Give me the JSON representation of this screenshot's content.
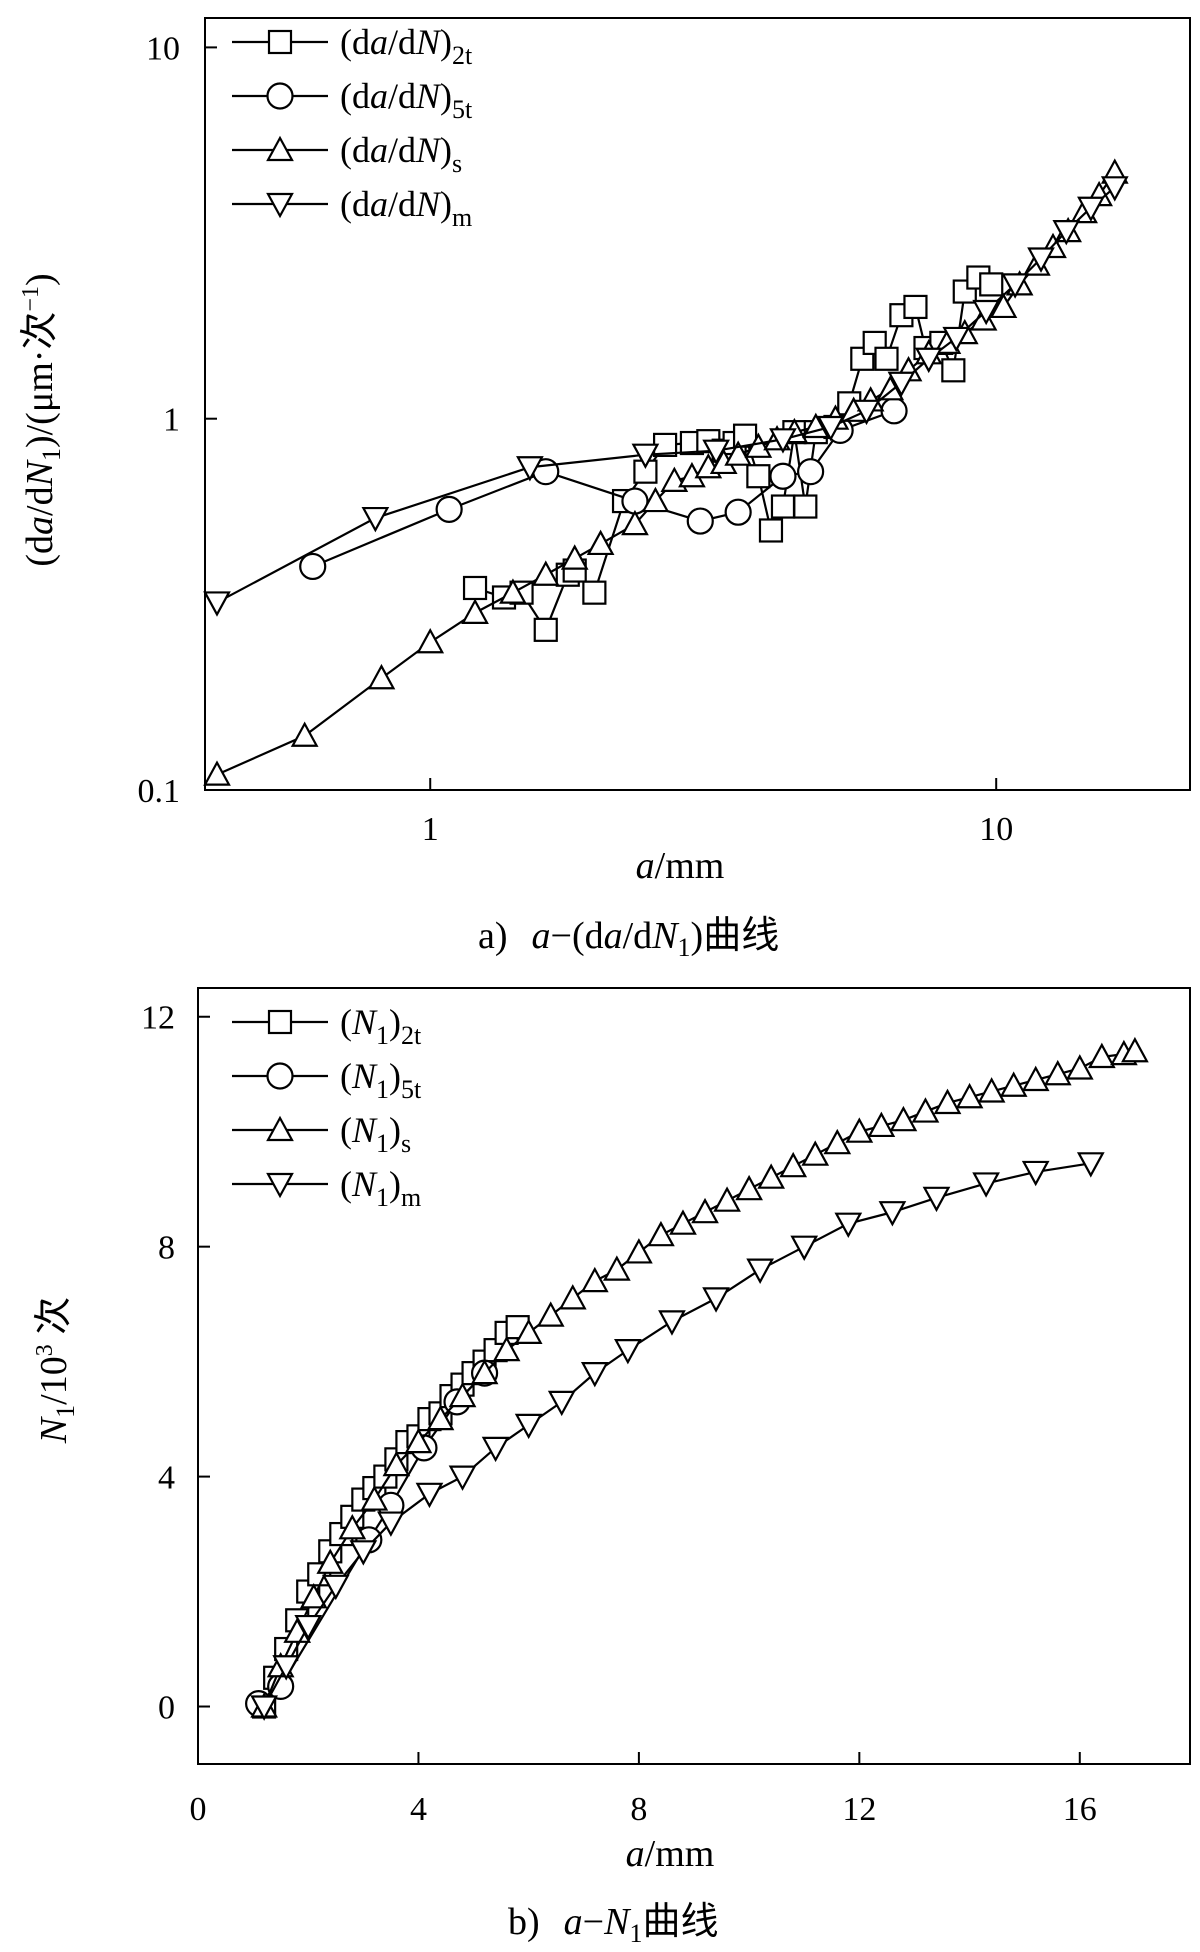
{
  "chart_data": [
    {
      "type": "line",
      "scale": "log-log",
      "xlim": [
        0.4,
        22
      ],
      "ylim": [
        0.1,
        12
      ],
      "x_ticks": [
        1,
        10
      ],
      "x_tick_labels": [
        "1",
        "10"
      ],
      "y_ticks": [
        0.1,
        1,
        10
      ],
      "y_tick_labels": [
        "0.1",
        "1",
        "10"
      ],
      "xlabel": {
        "var": "a",
        "unit": "/mm"
      },
      "ylabel": "(da/dN1)/(μm·次−1)",
      "ylabel_parts": {
        "p1": "(d",
        "a": "a",
        "p2": "/d",
        "N": "N",
        "sub1": "1",
        "p3": ")/(μm·次",
        "sup": "−1",
        "p4": ")"
      },
      "caption": {
        "letter": "a)",
        "var": "a",
        "dash": "−(d",
        "var2": "a",
        "mid": "/d",
        "N": "N",
        "sub": "1",
        "end": ")曲线"
      },
      "legend_position": "top-left",
      "series": [
        {
          "marker": "square",
          "legend": {
            "open": "(d",
            "a": "a",
            "mid": "/d",
            "N": "N",
            "close": ")",
            "sub": "2t"
          },
          "points": [
            [
              1.2,
              0.35
            ],
            [
              1.35,
              0.33
            ],
            [
              1.45,
              0.34
            ],
            [
              1.6,
              0.27
            ],
            [
              1.75,
              0.38
            ],
            [
              1.8,
              0.39
            ],
            [
              1.95,
              0.34
            ],
            [
              2.2,
              0.6
            ],
            [
              2.4,
              0.72
            ],
            [
              2.6,
              0.85
            ],
            [
              2.9,
              0.86
            ],
            [
              3.1,
              0.87
            ],
            [
              3.3,
              0.82
            ],
            [
              3.45,
              0.86
            ],
            [
              3.6,
              0.9
            ],
            [
              3.8,
              0.7
            ],
            [
              4.0,
              0.5
            ],
            [
              4.2,
              0.58
            ],
            [
              4.4,
              0.92
            ],
            [
              4.6,
              0.58
            ],
            [
              4.8,
              0.92
            ],
            [
              5.2,
              0.95
            ],
            [
              5.5,
              1.1
            ],
            [
              5.8,
              1.45
            ],
            [
              6.1,
              1.6
            ],
            [
              6.4,
              1.45
            ],
            [
              6.8,
              1.9
            ],
            [
              7.2,
              2.0
            ],
            [
              7.5,
              1.55
            ],
            [
              8.0,
              1.6
            ],
            [
              8.4,
              1.35
            ],
            [
              8.8,
              2.2
            ],
            [
              9.3,
              2.4
            ],
            [
              9.8,
              2.3
            ]
          ]
        },
        {
          "marker": "circle",
          "legend": {
            "open": "(d",
            "a": "a",
            "mid": "/d",
            "N": "N",
            "close": ")",
            "sub": "5t"
          },
          "points": [
            [
              0.62,
              0.4
            ],
            [
              1.08,
              0.57
            ],
            [
              1.6,
              0.72
            ],
            [
              2.3,
              0.6
            ],
            [
              3.0,
              0.53
            ],
            [
              3.5,
              0.56
            ],
            [
              4.2,
              0.7
            ],
            [
              4.7,
              0.72
            ],
            [
              5.3,
              0.93
            ],
            [
              6.6,
              1.05
            ]
          ]
        },
        {
          "marker": "triangle-up",
          "legend": {
            "open": "(d",
            "a": "a",
            "mid": "/d",
            "N": "N",
            "close": ")",
            "sub": "s"
          },
          "points": [
            [
              0.42,
              0.11
            ],
            [
              0.6,
              0.14
            ],
            [
              0.82,
              0.2
            ],
            [
              1.0,
              0.25
            ],
            [
              1.2,
              0.3
            ],
            [
              1.4,
              0.34
            ],
            [
              1.6,
              0.38
            ],
            [
              1.8,
              0.42
            ],
            [
              2.0,
              0.46
            ],
            [
              2.3,
              0.52
            ],
            [
              2.5,
              0.6
            ],
            [
              2.7,
              0.68
            ],
            [
              2.9,
              0.7
            ],
            [
              3.1,
              0.74
            ],
            [
              3.3,
              0.76
            ],
            [
              3.5,
              0.8
            ],
            [
              3.8,
              0.84
            ],
            [
              4.1,
              0.88
            ],
            [
              4.4,
              0.92
            ],
            [
              4.8,
              0.95
            ],
            [
              5.2,
              1.0
            ],
            [
              5.6,
              1.05
            ],
            [
              6.0,
              1.12
            ],
            [
              6.5,
              1.2
            ],
            [
              7.0,
              1.35
            ],
            [
              7.6,
              1.5
            ],
            [
              8.2,
              1.6
            ],
            [
              8.8,
              1.7
            ],
            [
              9.5,
              1.85
            ],
            [
              10.3,
              2.0
            ],
            [
              11.0,
              2.3
            ],
            [
              11.8,
              2.6
            ],
            [
              12.6,
              2.9
            ],
            [
              13.4,
              3.2
            ],
            [
              14.3,
              3.6
            ],
            [
              15.2,
              4.0
            ],
            [
              16.2,
              4.6
            ]
          ]
        },
        {
          "marker": "triangle-down",
          "legend": {
            "open": "(d",
            "a": "a",
            "mid": "/d",
            "N": "N",
            "close": ")",
            "sub": "m"
          },
          "points": [
            [
              0.42,
              0.32
            ],
            [
              0.8,
              0.54
            ],
            [
              1.5,
              0.74
            ],
            [
              2.4,
              0.8
            ],
            [
              3.2,
              0.82
            ],
            [
              4.2,
              0.88
            ],
            [
              5.1,
              0.95
            ],
            [
              5.9,
              1.05
            ],
            [
              6.8,
              1.25
            ],
            [
              7.6,
              1.45
            ],
            [
              8.5,
              1.65
            ],
            [
              9.6,
              1.95
            ],
            [
              10.8,
              2.3
            ],
            [
              12.0,
              2.7
            ],
            [
              13.3,
              3.2
            ],
            [
              14.7,
              3.7
            ],
            [
              16.2,
              4.2
            ]
          ]
        }
      ]
    },
    {
      "type": "line",
      "scale": "linear",
      "xlim": [
        0,
        18
      ],
      "ylim": [
        -1,
        12.5
      ],
      "x_ticks": [
        0,
        4,
        8,
        12,
        16
      ],
      "x_tick_labels": [
        "0",
        "4",
        "8",
        "12",
        "16"
      ],
      "y_ticks": [
        0,
        4,
        8,
        12
      ],
      "y_tick_labels": [
        "0",
        "4",
        "8",
        "12"
      ],
      "xlabel": {
        "var": "a",
        "unit": "/mm"
      },
      "ylabel": "N1/10³ 次",
      "ylabel_parts": {
        "N": "N",
        "sub": "1",
        "mid": "/10",
        "sup": "3",
        "end": " 次"
      },
      "caption": {
        "letter": "b)",
        "var": "a",
        "dash": "−",
        "N": "N",
        "sub": "1",
        "end": "曲线"
      },
      "legend_position": "top-left",
      "series": [
        {
          "marker": "square",
          "legend": {
            "open": "(",
            "N": "N",
            "sub1": "1",
            "close": ")",
            "sub": "2t"
          },
          "points": [
            [
              1.2,
              0.0
            ],
            [
              1.4,
              0.5
            ],
            [
              1.6,
              1.0
            ],
            [
              1.8,
              1.5
            ],
            [
              2.0,
              2.0
            ],
            [
              2.2,
              2.3
            ],
            [
              2.4,
              2.7
            ],
            [
              2.6,
              3.0
            ],
            [
              2.8,
              3.3
            ],
            [
              3.0,
              3.6
            ],
            [
              3.2,
              3.8
            ],
            [
              3.4,
              4.0
            ],
            [
              3.6,
              4.3
            ],
            [
              3.8,
              4.6
            ],
            [
              4.0,
              4.7
            ],
            [
              4.2,
              5.0
            ],
            [
              4.4,
              5.1
            ],
            [
              4.6,
              5.4
            ],
            [
              4.8,
              5.6
            ],
            [
              5.0,
              5.8
            ],
            [
              5.2,
              6.0
            ],
            [
              5.4,
              6.2
            ],
            [
              5.6,
              6.5
            ],
            [
              5.8,
              6.6
            ]
          ]
        },
        {
          "marker": "circle",
          "legend": {
            "open": "(",
            "N": "N",
            "sub1": "1",
            "close": ")",
            "sub": "5t"
          },
          "points": [
            [
              1.1,
              0.05
            ],
            [
              1.5,
              0.35
            ],
            [
              3.1,
              2.9
            ],
            [
              3.5,
              3.5
            ],
            [
              4.1,
              4.5
            ],
            [
              4.7,
              5.3
            ],
            [
              5.2,
              5.8
            ]
          ]
        },
        {
          "marker": "triangle-up",
          "legend": {
            "open": "(",
            "N": "N",
            "sub1": "1",
            "close": ")",
            "sub": "s"
          },
          "points": [
            [
              1.2,
              0.0
            ],
            [
              1.5,
              0.7
            ],
            [
              1.8,
              1.3
            ],
            [
              2.1,
              1.9
            ],
            [
              2.4,
              2.5
            ],
            [
              2.8,
              3.1
            ],
            [
              3.2,
              3.6
            ],
            [
              3.6,
              4.2
            ],
            [
              4.0,
              4.6
            ],
            [
              4.4,
              5.0
            ],
            [
              4.8,
              5.4
            ],
            [
              5.2,
              5.8
            ],
            [
              5.6,
              6.2
            ],
            [
              6.0,
              6.5
            ],
            [
              6.4,
              6.8
            ],
            [
              6.8,
              7.1
            ],
            [
              7.2,
              7.4
            ],
            [
              7.6,
              7.6
            ],
            [
              8.0,
              7.9
            ],
            [
              8.4,
              8.2
            ],
            [
              8.8,
              8.4
            ],
            [
              9.2,
              8.6
            ],
            [
              9.6,
              8.8
            ],
            [
              10.0,
              9.0
            ],
            [
              10.4,
              9.2
            ],
            [
              10.8,
              9.4
            ],
            [
              11.2,
              9.6
            ],
            [
              11.6,
              9.8
            ],
            [
              12.0,
              10.0
            ],
            [
              12.4,
              10.1
            ],
            [
              12.8,
              10.2
            ],
            [
              13.2,
              10.35
            ],
            [
              13.6,
              10.5
            ],
            [
              14.0,
              10.6
            ],
            [
              14.4,
              10.7
            ],
            [
              14.8,
              10.8
            ],
            [
              15.2,
              10.9
            ],
            [
              15.6,
              11.0
            ],
            [
              16.0,
              11.1
            ],
            [
              16.4,
              11.3
            ],
            [
              16.8,
              11.35
            ],
            [
              17.0,
              11.4
            ]
          ]
        },
        {
          "marker": "triangle-down",
          "legend": {
            "open": "(",
            "N": "N",
            "sub1": "1",
            "close": ")",
            "sub": "m"
          },
          "points": [
            [
              1.2,
              0.0
            ],
            [
              1.6,
              0.7
            ],
            [
              2.0,
              1.4
            ],
            [
              2.5,
              2.1
            ],
            [
              3.0,
              2.7
            ],
            [
              3.5,
              3.2
            ],
            [
              4.2,
              3.7
            ],
            [
              4.8,
              4.0
            ],
            [
              5.4,
              4.5
            ],
            [
              6.0,
              4.9
            ],
            [
              6.6,
              5.3
            ],
            [
              7.2,
              5.8
            ],
            [
              7.8,
              6.2
            ],
            [
              8.6,
              6.7
            ],
            [
              9.4,
              7.1
            ],
            [
              10.2,
              7.6
            ],
            [
              11.0,
              8.0
            ],
            [
              11.8,
              8.4
            ],
            [
              12.6,
              8.6
            ],
            [
              13.4,
              8.85
            ],
            [
              14.3,
              9.1
            ],
            [
              15.2,
              9.3
            ],
            [
              16.2,
              9.45
            ]
          ]
        }
      ]
    }
  ]
}
